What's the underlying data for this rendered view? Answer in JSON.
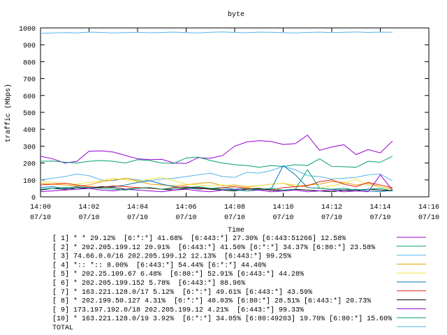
{
  "chart_data": {
    "type": "line",
    "title": "byte",
    "xlabel": "Time",
    "ylabel": "traffic (Mbps)",
    "xlim": [
      0,
      16
    ],
    "ylim": [
      0,
      1000
    ],
    "xticks": [
      {
        "value": 0,
        "label": "14:00\n07/10"
      },
      {
        "value": 2,
        "label": "14:02\n07/10"
      },
      {
        "value": 4,
        "label": "14:04\n07/10"
      },
      {
        "value": 6,
        "label": "14:06\n07/10"
      },
      {
        "value": 8,
        "label": "14:08\n07/10"
      },
      {
        "value": 10,
        "label": "14:10\n07/10"
      },
      {
        "value": 12,
        "label": "14:12\n07/10"
      },
      {
        "value": 14,
        "label": "14:14\n07/10"
      },
      {
        "value": 16,
        "label": "14:16\n07/10"
      }
    ],
    "yticks": [
      0,
      100,
      200,
      300,
      400,
      500,
      600,
      700,
      800,
      900,
      1000
    ],
    "x": [
      0,
      0.5,
      1,
      1.5,
      2,
      2.5,
      3,
      3.5,
      4,
      4.5,
      5,
      5.5,
      6,
      6.5,
      7,
      7.5,
      8,
      8.5,
      9,
      9.5,
      10,
      10.5,
      11,
      11.5,
      12,
      12.5,
      13,
      13.5,
      14,
      14.5
    ],
    "series": [
      {
        "name": "[ 1] * * 29.12%  [6:*:*] 41.68%  [6:443:*] 27.30% [6:443:51266] 12.58%",
        "color": "#9400d3",
        "values": [
          240,
          225,
          200,
          210,
          270,
          272,
          265,
          245,
          225,
          220,
          222,
          200,
          198,
          232,
          228,
          245,
          300,
          325,
          332,
          328,
          310,
          315,
          365,
          275,
          295,
          308,
          250,
          280,
          260,
          330
        ]
      },
      {
        "name": "[ 2] * 202.205.199.12 20.91%  [6:443:*] 41.50% [6:*:*] 34.37% [6:80:*] 23.58%",
        "color": "#009e73",
        "values": [
          210,
          212,
          205,
          200,
          210,
          215,
          210,
          200,
          220,
          215,
          200,
          198,
          230,
          235,
          215,
          200,
          190,
          185,
          175,
          185,
          180,
          190,
          185,
          225,
          180,
          178,
          175,
          210,
          205,
          240
        ]
      },
      {
        "name": "[ 3] 74.66.0.0/16 202.205.199.12 12.13%  [6:443:*] 99.25%",
        "color": "#56b4e9",
        "values": [
          100,
          110,
          120,
          135,
          125,
          100,
          95,
          110,
          100,
          95,
          105,
          110,
          120,
          130,
          140,
          120,
          115,
          145,
          140,
          155,
          180,
          160,
          125,
          120,
          105,
          110,
          115,
          130,
          135,
          95
        ]
      },
      {
        "name": "[ 4] *:: *:: 8.00%  [6:443:*] 54.44% [6:*:*] 44.40%",
        "color": "#e69f00",
        "values": [
          80,
          75,
          70,
          65,
          70,
          90,
          100,
          110,
          95,
          75,
          70,
          65,
          70,
          80,
          85,
          65,
          70,
          60,
          65,
          75,
          80,
          60,
          70,
          75,
          90,
          85,
          70,
          80,
          60,
          45
        ]
      },
      {
        "name": "[ 5] * 202.25.109.67 6.48%  [6:80:*] 52.91% [6:443:*] 44.28%",
        "color": "#f0e442",
        "values": [
          90,
          85,
          80,
          75,
          85,
          95,
          110,
          100,
          90,
          105,
          115,
          95,
          75,
          70,
          65,
          70,
          60,
          55,
          65,
          75,
          80,
          70,
          55,
          50,
          65,
          80,
          105,
          70,
          60,
          50
        ]
      },
      {
        "name": "[ 6] * 202.205.199.152 5.78%  [6:443:*] 88.96%",
        "color": "#0072b2",
        "values": [
          55,
          60,
          50,
          45,
          50,
          55,
          60,
          70,
          85,
          95,
          75,
          60,
          55,
          45,
          50,
          55,
          45,
          50,
          40,
          45,
          185,
          130,
          55,
          50,
          45,
          40,
          45,
          35,
          30,
          40
        ]
      },
      {
        "name": "[ 7] * 163.221.128.0/17 5.12%  [6:*:*] 49.61% [6:443:*] 43.59%",
        "color": "#e51e10",
        "values": [
          70,
          75,
          80,
          70,
          60,
          55,
          65,
          60,
          55,
          50,
          45,
          55,
          60,
          50,
          45,
          55,
          60,
          50,
          45,
          40,
          55,
          60,
          65,
          90,
          100,
          75,
          60,
          85,
          70,
          55
        ]
      },
      {
        "name": "[ 8] * 202.199.50.127 4.31%  [6:*:*] 40.03% [6:80:*] 28.51% [6:443:*] 20.73%",
        "color": "#000000",
        "values": [
          40,
          50,
          45,
          55,
          50,
          60,
          55,
          45,
          50,
          55,
          45,
          40,
          50,
          55,
          45,
          40,
          35,
          45,
          50,
          40,
          35,
          45,
          40,
          35,
          30,
          40,
          35,
          45,
          40,
          35
        ]
      },
      {
        "name": "[ 9] 173.197.192.0/18 202.205.199.12 4.21%  [6:443:*] 99.33%",
        "color": "#9400d3",
        "values": [
          30,
          35,
          40,
          45,
          50,
          40,
          35,
          45,
          40,
          35,
          30,
          40,
          45,
          35,
          30,
          40,
          45,
          35,
          40,
          30,
          35,
          40,
          30,
          35,
          40,
          30,
          35,
          30,
          130,
          40
        ]
      },
      {
        "name": "[10] * 163.221.128.0/19 3.92%  [6:*:*] 34.05% [6:80:49203] 19.70% [6:80:*] 15.60%",
        "color": "#009e73",
        "values": [
          45,
          50,
          55,
          60,
          55,
          50,
          45,
          40,
          50,
          55,
          45,
          50,
          55,
          60,
          50,
          45,
          40,
          35,
          45,
          50,
          40,
          45,
          160,
          50,
          45,
          50,
          40,
          45,
          50,
          35
        ]
      },
      {
        "name": "TOTAL",
        "color": "#56b4e9",
        "values": [
          968,
          970,
          972,
          970,
          975,
          973,
          970,
          972,
          974,
          971,
          973,
          975,
          972,
          970,
          974,
          976,
          973,
          971,
          975,
          974,
          972,
          970,
          973,
          975,
          972,
          974,
          976,
          973,
          975,
          974
        ]
      }
    ]
  }
}
